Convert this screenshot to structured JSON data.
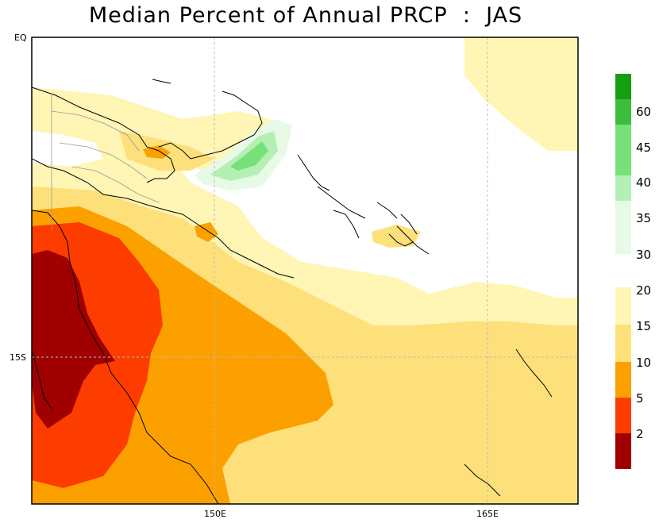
{
  "title": "Median Percent of Annual PRCP  :  JAS",
  "lat_labels": [
    "EQ",
    "15S"
  ],
  "lon_labels": [
    "150E",
    "165E"
  ],
  "legend": {
    "upper": [
      {
        "label": "60",
        "color": "#12a012"
      },
      {
        "label": "45",
        "color": "#3cbe3c"
      },
      {
        "label": "40",
        "color": "#78e078"
      },
      {
        "label": "35",
        "color": "#b4f0b4"
      },
      {
        "label": "30",
        "color": "#e6fae6"
      }
    ],
    "lower": [
      {
        "label": "20",
        "color": "#fff5b4"
      },
      {
        "label": "15",
        "color": "#fde07a"
      },
      {
        "label": "10",
        "color": "#fca000"
      },
      {
        "label": "5",
        "color": "#fd3c00"
      },
      {
        "label": "2",
        "color": "#a00000"
      }
    ]
  }
}
